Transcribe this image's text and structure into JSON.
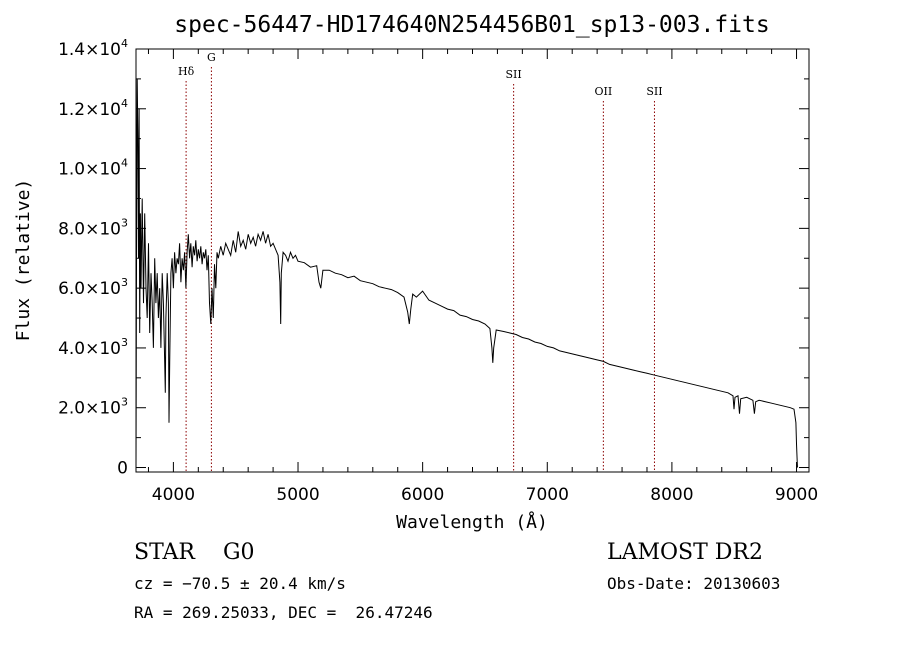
{
  "chart_data": {
    "type": "line",
    "title": "spec-56447-HD174640N254456B01_sp13-003.fits",
    "xlabel": "Wavelength (Å)",
    "ylabel": "Flux (relative)",
    "xlim": [
      3700,
      9100
    ],
    "ylim": [
      -150,
      14000
    ],
    "grid": false,
    "x_ticks": [
      4000,
      5000,
      6000,
      7000,
      8000,
      9000
    ],
    "x_tick_labels": [
      "4000",
      "5000",
      "6000",
      "7000",
      "8000",
      "9000"
    ],
    "y_ticks": [
      {
        "value": 0,
        "mantissa": "0",
        "exp": ""
      },
      {
        "value": 2000,
        "mantissa": "2.0×10",
        "exp": "3"
      },
      {
        "value": 4000,
        "mantissa": "4.0×10",
        "exp": "3"
      },
      {
        "value": 6000,
        "mantissa": "6.0×10",
        "exp": "3"
      },
      {
        "value": 8000,
        "mantissa": "8.0×10",
        "exp": "3"
      },
      {
        "value": 10000,
        "mantissa": "1.0×10",
        "exp": "4"
      },
      {
        "value": 12000,
        "mantissa": "1.2×10",
        "exp": "4"
      },
      {
        "value": 14000,
        "mantissa": "1.4×10",
        "exp": "4"
      }
    ],
    "lines": [
      {
        "label": "Hδ",
        "wavelength": 4102
      },
      {
        "label": "G",
        "wavelength": 4305
      },
      {
        "label": "SII",
        "wavelength": 6730
      },
      {
        "label": "OII",
        "wavelength": 7450
      },
      {
        "label": "SII",
        "wavelength": 7860
      }
    ],
    "series": [
      {
        "points": [
          [
            3700,
            0
          ],
          [
            3705,
            8000
          ],
          [
            3710,
            13000
          ],
          [
            3715,
            11000
          ],
          [
            3720,
            7000
          ],
          [
            3725,
            12000
          ],
          [
            3730,
            4500
          ],
          [
            3735,
            8500
          ],
          [
            3740,
            6000
          ],
          [
            3750,
            9000
          ],
          [
            3760,
            5500
          ],
          [
            3770,
            8500
          ],
          [
            3780,
            6000
          ],
          [
            3790,
            5000
          ],
          [
            3800,
            7500
          ],
          [
            3810,
            4500
          ],
          [
            3820,
            6500
          ],
          [
            3830,
            5500
          ],
          [
            3840,
            4000
          ],
          [
            3850,
            7000
          ],
          [
            3860,
            5500
          ],
          [
            3870,
            6500
          ],
          [
            3880,
            5000
          ],
          [
            3890,
            6000
          ],
          [
            3900,
            4000
          ],
          [
            3910,
            6500
          ],
          [
            3920,
            5500
          ],
          [
            3930,
            3500
          ],
          [
            3935,
            2500
          ],
          [
            3940,
            5000
          ],
          [
            3950,
            6500
          ],
          [
            3960,
            5500
          ],
          [
            3965,
            1500
          ],
          [
            3970,
            3500
          ],
          [
            3980,
            6500
          ],
          [
            3990,
            7000
          ],
          [
            4000,
            6000
          ],
          [
            4010,
            7200
          ],
          [
            4020,
            6500
          ],
          [
            4030,
            7000
          ],
          [
            4040,
            6800
          ],
          [
            4050,
            7500
          ],
          [
            4060,
            6200
          ],
          [
            4070,
            7000
          ],
          [
            4080,
            6600
          ],
          [
            4090,
            7200
          ],
          [
            4100,
            6000
          ],
          [
            4110,
            7200
          ],
          [
            4120,
            7800
          ],
          [
            4130,
            7000
          ],
          [
            4140,
            7500
          ],
          [
            4150,
            6700
          ],
          [
            4160,
            7400
          ],
          [
            4170,
            7100
          ],
          [
            4180,
            7600
          ],
          [
            4190,
            6900
          ],
          [
            4200,
            7300
          ],
          [
            4210,
            7000
          ],
          [
            4220,
            7400
          ],
          [
            4230,
            6800
          ],
          [
            4240,
            7200
          ],
          [
            4250,
            7000
          ],
          [
            4260,
            7300
          ],
          [
            4270,
            6600
          ],
          [
            4280,
            7100
          ],
          [
            4290,
            5500
          ],
          [
            4300,
            4800
          ],
          [
            4310,
            6000
          ],
          [
            4320,
            5000
          ],
          [
            4330,
            6800
          ],
          [
            4340,
            6000
          ],
          [
            4350,
            7200
          ],
          [
            4360,
            7000
          ],
          [
            4380,
            7400
          ],
          [
            4400,
            7100
          ],
          [
            4420,
            7500
          ],
          [
            4440,
            7300
          ],
          [
            4460,
            7100
          ],
          [
            4480,
            7600
          ],
          [
            4500,
            7200
          ],
          [
            4520,
            7900
          ],
          [
            4540,
            7400
          ],
          [
            4560,
            7600
          ],
          [
            4580,
            7300
          ],
          [
            4600,
            7800
          ],
          [
            4620,
            7500
          ],
          [
            4640,
            7700
          ],
          [
            4660,
            7400
          ],
          [
            4680,
            7800
          ],
          [
            4700,
            7600
          ],
          [
            4720,
            7900
          ],
          [
            4740,
            7500
          ],
          [
            4760,
            7800
          ],
          [
            4780,
            7400
          ],
          [
            4800,
            7500
          ],
          [
            4820,
            7300
          ],
          [
            4840,
            7100
          ],
          [
            4855,
            6200
          ],
          [
            4861,
            4800
          ],
          [
            4866,
            6500
          ],
          [
            4880,
            7200
          ],
          [
            4900,
            7100
          ],
          [
            4920,
            6900
          ],
          [
            4940,
            7200
          ],
          [
            4960,
            7000
          ],
          [
            4980,
            7100
          ],
          [
            5000,
            6900
          ],
          [
            5050,
            6850
          ],
          [
            5100,
            6700
          ],
          [
            5150,
            6750
          ],
          [
            5168,
            6200
          ],
          [
            5183,
            6000
          ],
          [
            5200,
            6600
          ],
          [
            5250,
            6600
          ],
          [
            5300,
            6500
          ],
          [
            5350,
            6450
          ],
          [
            5400,
            6350
          ],
          [
            5450,
            6400
          ],
          [
            5500,
            6250
          ],
          [
            5550,
            6200
          ],
          [
            5600,
            6150
          ],
          [
            5650,
            6050
          ],
          [
            5700,
            6000
          ],
          [
            5750,
            5950
          ],
          [
            5800,
            5850
          ],
          [
            5850,
            5700
          ],
          [
            5880,
            5200
          ],
          [
            5893,
            4800
          ],
          [
            5905,
            5300
          ],
          [
            5920,
            5800
          ],
          [
            5950,
            5700
          ],
          [
            6000,
            5900
          ],
          [
            6050,
            5600
          ],
          [
            6100,
            5500
          ],
          [
            6150,
            5400
          ],
          [
            6200,
            5300
          ],
          [
            6250,
            5250
          ],
          [
            6300,
            5100
          ],
          [
            6350,
            5050
          ],
          [
            6400,
            4950
          ],
          [
            6450,
            4900
          ],
          [
            6500,
            4800
          ],
          [
            6540,
            4650
          ],
          [
            6556,
            4000
          ],
          [
            6563,
            3500
          ],
          [
            6570,
            4000
          ],
          [
            6590,
            4600
          ],
          [
            6650,
            4550
          ],
          [
            6700,
            4500
          ],
          [
            6750,
            4450
          ],
          [
            6800,
            4350
          ],
          [
            6850,
            4300
          ],
          [
            6900,
            4200
          ],
          [
            6950,
            4150
          ],
          [
            7000,
            4050
          ],
          [
            7050,
            4000
          ],
          [
            7100,
            3900
          ],
          [
            7150,
            3850
          ],
          [
            7200,
            3800
          ],
          [
            7250,
            3750
          ],
          [
            7300,
            3700
          ],
          [
            7350,
            3650
          ],
          [
            7400,
            3600
          ],
          [
            7450,
            3550
          ],
          [
            7500,
            3450
          ],
          [
            7550,
            3400
          ],
          [
            7600,
            3350
          ],
          [
            7650,
            3300
          ],
          [
            7700,
            3250
          ],
          [
            7750,
            3200
          ],
          [
            7800,
            3150
          ],
          [
            7850,
            3100
          ],
          [
            7900,
            3050
          ],
          [
            7950,
            3000
          ],
          [
            8000,
            2950
          ],
          [
            8050,
            2900
          ],
          [
            8100,
            2850
          ],
          [
            8150,
            2800
          ],
          [
            8200,
            2750
          ],
          [
            8250,
            2700
          ],
          [
            8300,
            2650
          ],
          [
            8350,
            2600
          ],
          [
            8400,
            2550
          ],
          [
            8450,
            2500
          ],
          [
            8490,
            2400
          ],
          [
            8498,
            1950
          ],
          [
            8506,
            2350
          ],
          [
            8530,
            2400
          ],
          [
            8542,
            1800
          ],
          [
            8552,
            2300
          ],
          [
            8600,
            2350
          ],
          [
            8650,
            2250
          ],
          [
            8662,
            1800
          ],
          [
            8672,
            2200
          ],
          [
            8700,
            2250
          ],
          [
            8750,
            2200
          ],
          [
            8800,
            2150
          ],
          [
            8850,
            2100
          ],
          [
            8900,
            2050
          ],
          [
            8950,
            2000
          ],
          [
            8980,
            1950
          ],
          [
            8995,
            1500
          ],
          [
            9000,
            800
          ],
          [
            9005,
            200
          ],
          [
            9008,
            0
          ]
        ]
      }
    ]
  },
  "info": {
    "object": "STAR    G0",
    "cz": "cz = −70.5 ± 20.4 km/s",
    "radec": "RA = 269.25033, DEC =  26.47246",
    "survey": "LAMOST DR2",
    "obsdate": "Obs-Date: 20130603"
  }
}
